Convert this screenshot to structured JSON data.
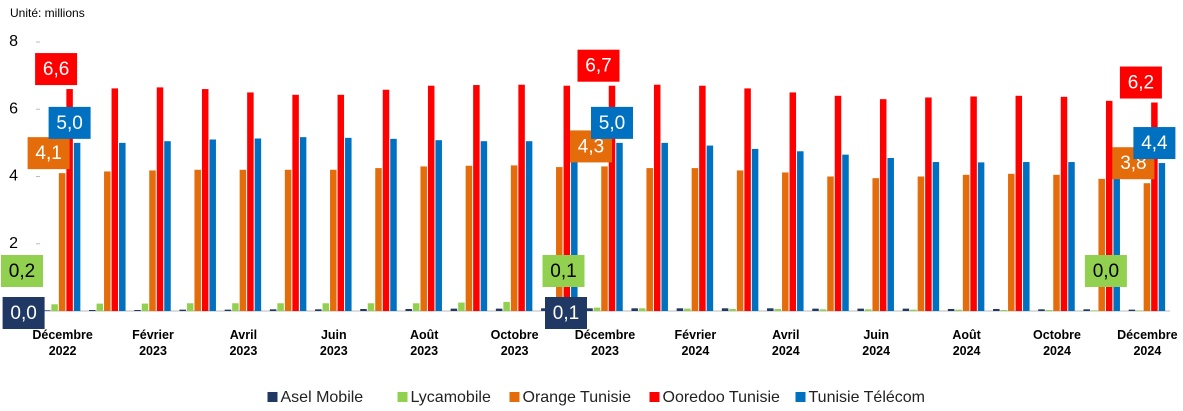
{
  "chart_data": {
    "type": "bar",
    "subtitle": "Unité: millions",
    "categories": [
      "Décembre 2022",
      null,
      "Février 2023",
      null,
      "Avril 2023",
      null,
      "Juin 2023",
      null,
      "Août 2023",
      null,
      "Octobre 2023",
      null,
      "Décembre 2023",
      null,
      "Février 2024",
      null,
      "Avril 2024",
      null,
      "Juin 2024",
      null,
      "Août 2024",
      null,
      "Octobre 2024",
      null,
      "Décembre 2024"
    ],
    "ylim": [
      0,
      8
    ],
    "yticks": [
      0,
      2,
      4,
      6,
      8
    ],
    "grid": false,
    "legend": "bottom",
    "series": [
      {
        "name": "Asel Mobile",
        "color": "#1f3864",
        "values": [
          0.02,
          0.03,
          0.03,
          0.04,
          0.04,
          0.05,
          0.05,
          0.06,
          0.06,
          0.07,
          0.07,
          0.08,
          0.08,
          0.08,
          0.08,
          0.08,
          0.08,
          0.07,
          0.07,
          0.07,
          0.06,
          0.06,
          0.05,
          0.05,
          0.04
        ],
        "value_labels": [
          "0,0",
          null,
          null,
          null,
          null,
          null,
          null,
          null,
          null,
          null,
          null,
          null,
          "0,1",
          null,
          null,
          null,
          null,
          null,
          null,
          null,
          null,
          null,
          null,
          null,
          null
        ]
      },
      {
        "name": "Lycamobile",
        "color": "#92d050",
        "values": [
          0.2,
          0.22,
          0.22,
          0.23,
          0.23,
          0.23,
          0.23,
          0.23,
          0.23,
          0.25,
          0.27,
          0.3,
          0.1,
          0.08,
          0.07,
          0.06,
          0.06,
          0.05,
          0.05,
          0.04,
          0.04,
          0.03,
          0.03,
          0.02,
          0.02
        ],
        "value_labels": [
          "0,2",
          null,
          null,
          null,
          null,
          null,
          null,
          null,
          null,
          null,
          null,
          null,
          "0,1",
          null,
          null,
          null,
          null,
          null,
          null,
          null,
          null,
          null,
          null,
          null,
          "0,0"
        ]
      },
      {
        "name": "Orange Tunisie",
        "color": "#e46c0a",
        "values": [
          4.1,
          4.15,
          4.18,
          4.2,
          4.2,
          4.2,
          4.2,
          4.25,
          4.3,
          4.32,
          4.33,
          4.28,
          4.3,
          4.25,
          4.25,
          4.18,
          4.12,
          4.0,
          3.95,
          4.0,
          4.05,
          4.08,
          4.05,
          3.93,
          3.8
        ],
        "value_labels": [
          "4,1",
          null,
          null,
          null,
          null,
          null,
          null,
          null,
          null,
          null,
          null,
          null,
          "4,3",
          null,
          null,
          null,
          null,
          null,
          null,
          null,
          null,
          null,
          null,
          null,
          "3,8"
        ]
      },
      {
        "name": "Ooredoo Tunisie",
        "color": "#ff0000",
        "values": [
          6.6,
          6.62,
          6.65,
          6.6,
          6.5,
          6.43,
          6.43,
          6.58,
          6.7,
          6.72,
          6.73,
          6.7,
          6.7,
          6.73,
          6.7,
          6.62,
          6.5,
          6.4,
          6.3,
          6.35,
          6.38,
          6.4,
          6.37,
          6.25,
          6.2
        ],
        "value_labels": [
          "6,6",
          null,
          null,
          null,
          null,
          null,
          null,
          null,
          null,
          null,
          null,
          null,
          "6,7",
          null,
          null,
          null,
          null,
          null,
          null,
          null,
          null,
          null,
          null,
          null,
          "6,2"
        ]
      },
      {
        "name": "Tunisie Télécom",
        "color": "#0070c0",
        "values": [
          5.0,
          5.0,
          5.05,
          5.1,
          5.13,
          5.17,
          5.15,
          5.12,
          5.08,
          5.05,
          5.05,
          5.0,
          5.0,
          5.0,
          4.92,
          4.82,
          4.75,
          4.65,
          4.55,
          4.43,
          4.42,
          4.43,
          4.43,
          4.4,
          4.4
        ],
        "value_labels": [
          "5,0",
          null,
          null,
          null,
          null,
          null,
          null,
          null,
          null,
          null,
          null,
          null,
          "5,0",
          null,
          null,
          null,
          null,
          null,
          null,
          null,
          null,
          null,
          null,
          null,
          "4,4"
        ]
      }
    ]
  }
}
